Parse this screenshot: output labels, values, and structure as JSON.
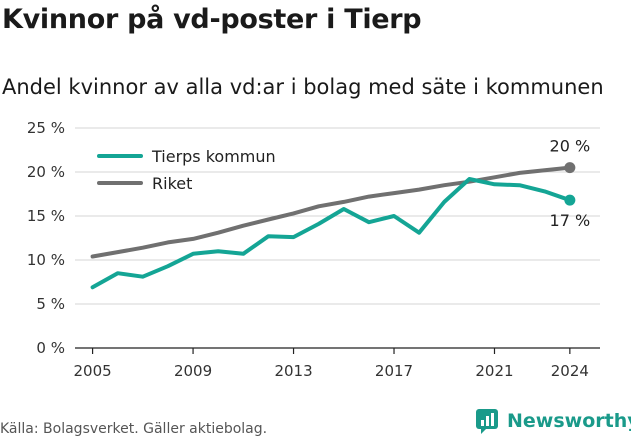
{
  "header": {
    "title": "Kvinnor på vd-poster i Tierp",
    "subtitle": "Andel kvinnor av alla vd:ar i bolag med säte i kommunen"
  },
  "footer": {
    "source": "Källa: Bolagsverket. Gäller aktiebolag.",
    "brand": "Newsworthy",
    "brand_icon": "newsworthy-logo-icon"
  },
  "colors": {
    "tierp": "#14a595",
    "riket": "#707070",
    "grid": "#d4d4d4",
    "axis": "#222222",
    "brand": "#1a9a8a"
  },
  "chart_data": {
    "type": "line",
    "title": "Kvinnor på vd-poster i Tierp",
    "subtitle": "Andel kvinnor av alla vd:ar i bolag med säte i kommunen",
    "xlabel": "",
    "ylabel": "",
    "x": [
      2005,
      2006,
      2007,
      2008,
      2009,
      2010,
      2011,
      2012,
      2013,
      2014,
      2015,
      2016,
      2017,
      2018,
      2019,
      2020,
      2021,
      2022,
      2023,
      2024
    ],
    "xlim": [
      2004.3,
      2025.2
    ],
    "ylim": [
      0,
      25
    ],
    "xticks": [
      2005,
      2009,
      2013,
      2017,
      2021,
      2024
    ],
    "xtick_labels": [
      "2005",
      "2009",
      "2013",
      "2017",
      "2021",
      "2024"
    ],
    "yticks": [
      0,
      5,
      10,
      15,
      20,
      25
    ],
    "ytick_labels": [
      "0 %",
      "5 %",
      "10 %",
      "15 %",
      "20 %",
      "25 %"
    ],
    "grid": true,
    "legend_position": "top-left",
    "series": [
      {
        "name": "Tierps kommun",
        "key": "tierp",
        "values": [
          6.9,
          8.5,
          8.1,
          9.3,
          10.7,
          11.0,
          10.7,
          12.7,
          12.6,
          14.1,
          15.8,
          14.3,
          15.0,
          13.1,
          16.6,
          19.2,
          18.6,
          18.5,
          17.8,
          16.8
        ],
        "end_label": "17 %"
      },
      {
        "name": "Riket",
        "key": "riket",
        "values": [
          10.4,
          10.9,
          11.4,
          12.0,
          12.4,
          13.1,
          13.9,
          14.6,
          15.3,
          16.1,
          16.6,
          17.2,
          17.6,
          18.0,
          18.5,
          18.9,
          19.4,
          19.9,
          20.2,
          20.5
        ],
        "end_label": "20 %"
      }
    ]
  }
}
